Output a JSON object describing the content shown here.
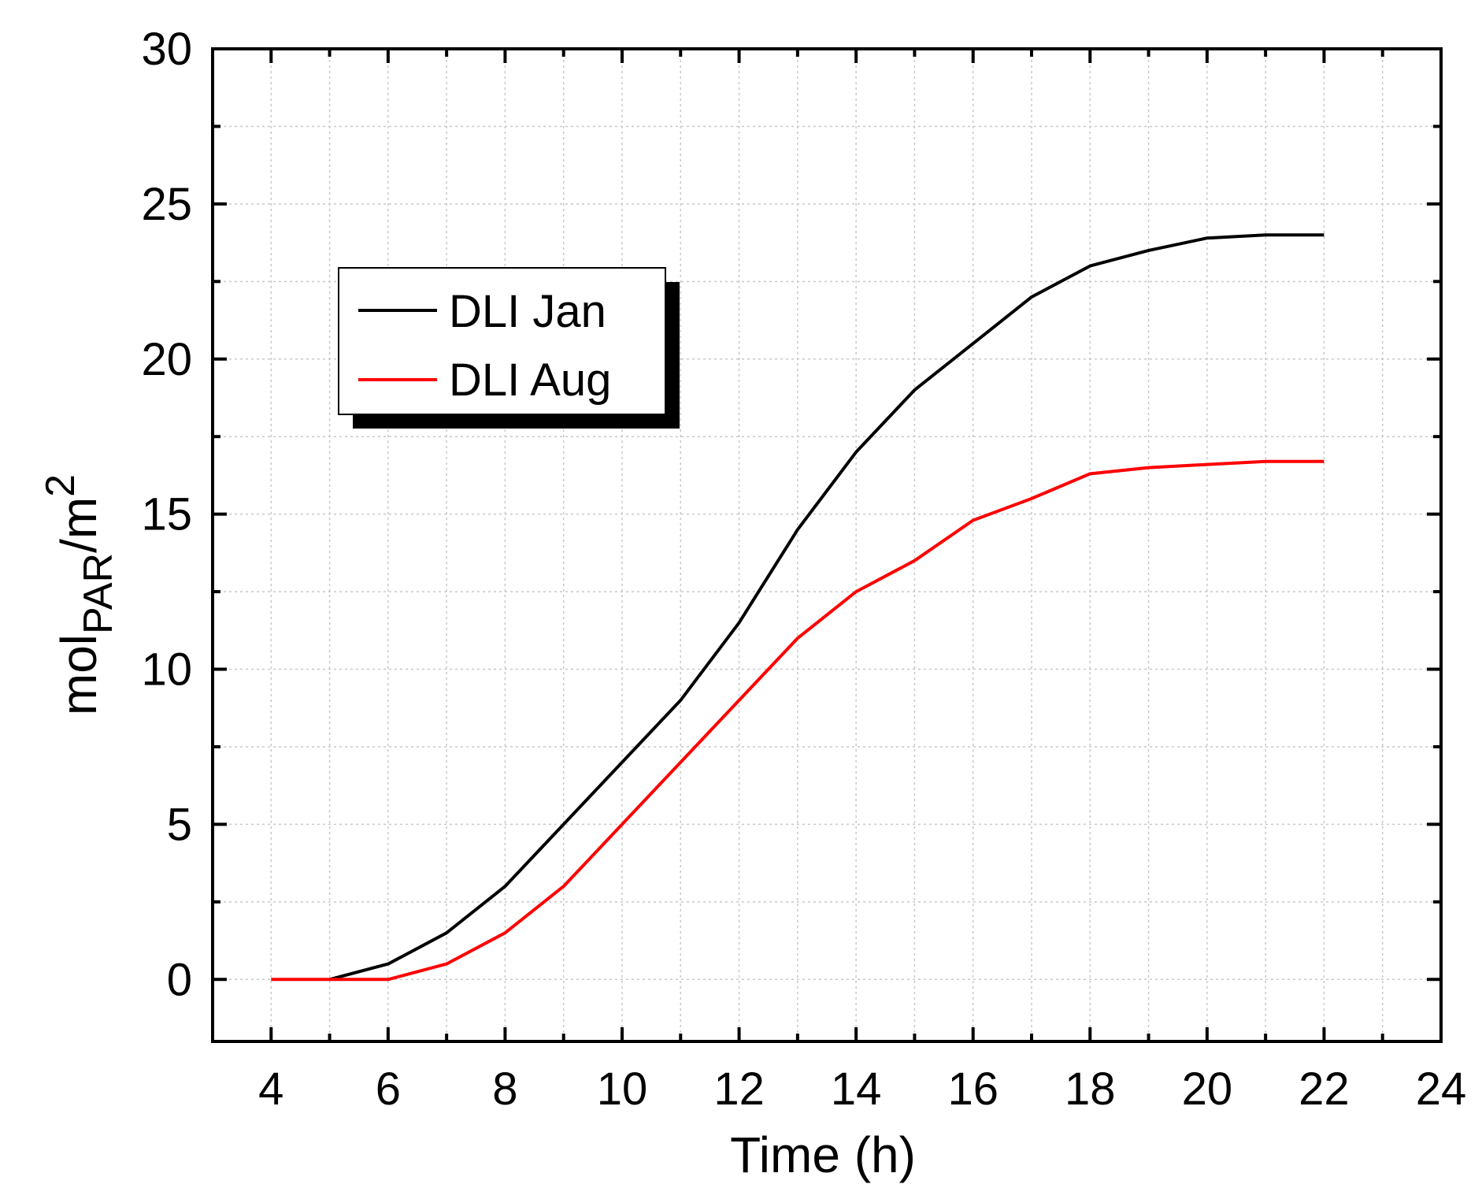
{
  "chart_data": {
    "type": "line",
    "title": "",
    "xlabel": "Time (h)",
    "ylabel": {
      "main": "mol",
      "sub": "PAR",
      "rest": "/m",
      "sup": "2"
    },
    "xlim": [
      3,
      24
    ],
    "ylim": [
      -2,
      30
    ],
    "xticks": [
      4,
      6,
      8,
      10,
      12,
      14,
      16,
      18,
      20,
      22,
      24
    ],
    "yticks": [
      0,
      5,
      10,
      15,
      20,
      25,
      30
    ],
    "grid": true,
    "legend_position": "upper-left",
    "series": [
      {
        "name": "DLI Jan",
        "color": "#000000",
        "x": [
          5,
          6,
          7,
          8,
          9,
          10,
          11,
          12,
          13,
          14,
          15,
          16,
          17,
          18,
          19,
          20,
          21,
          22
        ],
        "y": [
          0,
          0.5,
          1.5,
          3.0,
          5.0,
          7.0,
          9.0,
          11.5,
          14.5,
          17.0,
          19.0,
          20.5,
          22.0,
          23.0,
          23.5,
          23.9,
          24.0,
          24.0
        ]
      },
      {
        "name": "DLI Aug",
        "color": "#ff0000",
        "x": [
          4,
          5,
          6,
          7,
          8,
          9,
          10,
          11,
          12,
          13,
          14,
          15,
          16,
          17,
          18,
          19,
          20,
          21,
          22
        ],
        "y": [
          0,
          0,
          0,
          0.5,
          1.5,
          3.0,
          5.0,
          7.0,
          9.0,
          11.0,
          12.5,
          13.5,
          14.8,
          15.5,
          16.3,
          16.5,
          16.6,
          16.7,
          16.7
        ]
      }
    ]
  }
}
